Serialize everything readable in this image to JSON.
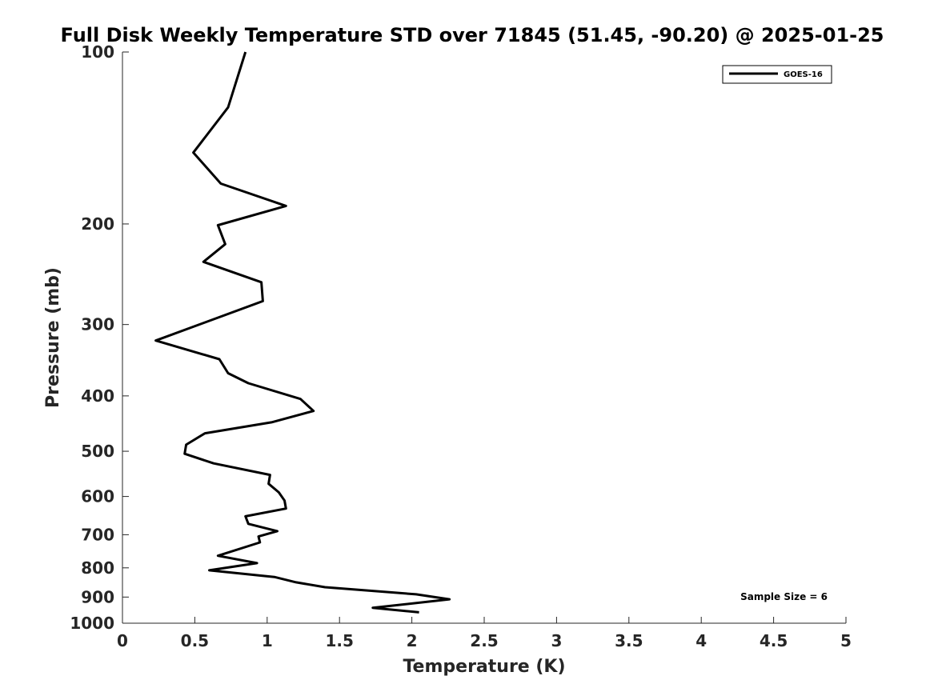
{
  "chart_data": {
    "type": "line",
    "title": "Full Disk Weekly Temperature STD over 71845 (51.45, -90.20) @ 2025-01-25",
    "xlabel": "Temperature (K)",
    "ylabel": "Pressure (mb)",
    "xlim": [
      0,
      5
    ],
    "ylim": [
      100,
      1000
    ],
    "y_scale": "log",
    "y_reversed": true,
    "grid": false,
    "x_ticks": [
      "0",
      "0.5",
      "1",
      "1.5",
      "2",
      "2.5",
      "3",
      "3.5",
      "4",
      "4.5",
      "5"
    ],
    "y_ticks": [
      "100",
      "200",
      "300",
      "400",
      "500",
      "600",
      "700",
      "800",
      "900",
      "1000"
    ],
    "legend": {
      "position": "top-right",
      "entries": [
        "GOES-16"
      ]
    },
    "annotation": "Sample Size = 6",
    "series": [
      {
        "name": "GOES-16",
        "color": "#000000",
        "points": [
          [
            0.85,
            100
          ],
          [
            0.73,
            125
          ],
          [
            0.49,
            150
          ],
          [
            0.68,
            170
          ],
          [
            1.13,
            186
          ],
          [
            0.66,
            201
          ],
          [
            0.71,
            217
          ],
          [
            0.56,
            233
          ],
          [
            0.96,
            253
          ],
          [
            0.97,
            273
          ],
          [
            0.23,
            320
          ],
          [
            0.67,
            345
          ],
          [
            0.73,
            365
          ],
          [
            0.87,
            380
          ],
          [
            1.23,
            405
          ],
          [
            1.32,
            425
          ],
          [
            1.03,
            445
          ],
          [
            0.57,
            465
          ],
          [
            0.44,
            487
          ],
          [
            0.43,
            505
          ],
          [
            0.63,
            525
          ],
          [
            1.02,
            550
          ],
          [
            1.01,
            570
          ],
          [
            1.08,
            590
          ],
          [
            1.12,
            610
          ],
          [
            1.13,
            630
          ],
          [
            0.85,
            650
          ],
          [
            0.87,
            670
          ],
          [
            1.07,
            690
          ],
          [
            0.94,
            705
          ],
          [
            0.95,
            722
          ],
          [
            0.66,
            762
          ],
          [
            0.93,
            785
          ],
          [
            0.6,
            808
          ],
          [
            1.05,
            830
          ],
          [
            1.2,
            848
          ],
          [
            1.4,
            865
          ],
          [
            2.03,
            890
          ],
          [
            2.26,
            908
          ],
          [
            1.73,
            940
          ],
          [
            2.05,
            957
          ]
        ]
      }
    ]
  }
}
